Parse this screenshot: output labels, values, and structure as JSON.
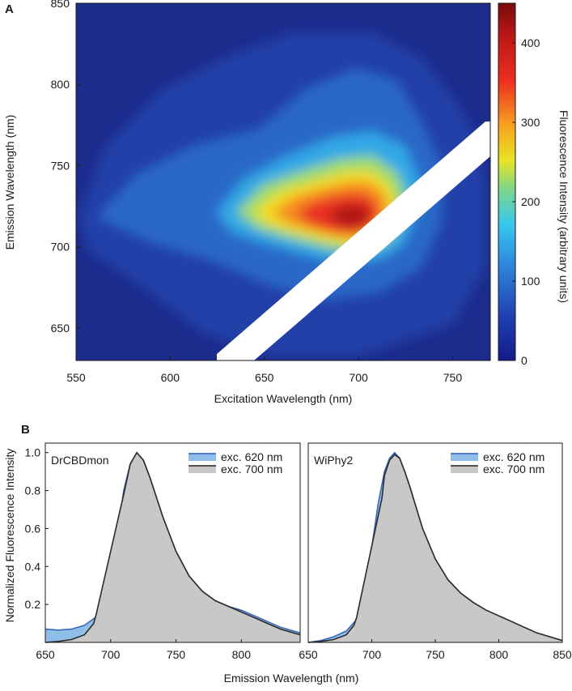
{
  "panelA": {
    "label": "A",
    "xlabel": "Excitation Wavelength (nm)",
    "ylabel": "Emission Wavelength (nm)",
    "colorbar_label": "Fluorescence Intensity (arbitrary units)"
  },
  "panelB": {
    "label": "B",
    "ylabel": "Normalized Fluorescence Intensity",
    "xlabel": "Emission Wavelength (nm)"
  },
  "colors": {
    "blue_fill": "#8fbfe8",
    "blue_line": "#3c68b5",
    "gray_fill": "#c8c8c8",
    "gray_line": "#2b2b2b",
    "heatmap_background": "#1c2c8c"
  },
  "chart_data": [
    {
      "type": "heatmap",
      "title": "",
      "xlabel": "Excitation Wavelength (nm)",
      "ylabel": "Emission Wavelength (nm)",
      "xlim": [
        550,
        770
      ],
      "ylim": [
        630,
        850
      ],
      "xticks": [
        550,
        600,
        650,
        700,
        750
      ],
      "yticks": [
        650,
        700,
        750,
        800,
        850
      ],
      "colorbar": {
        "label": "Fluorescence Intensity (arbitrary units)",
        "range": [
          0,
          450
        ],
        "ticks": [
          0,
          100,
          200,
          300,
          400
        ],
        "colormap": "jet"
      },
      "peak": {
        "excitation": 700,
        "emission": 720,
        "intensity": 445
      },
      "masked_band": {
        "description": "scatter band masked (white)",
        "from": [
          625,
          630
        ],
        "to": [
          770,
          775
        ]
      }
    },
    {
      "type": "area",
      "sample_label": "DrCBDmon",
      "xlabel": "",
      "ylabel": "Normalized Fluorescence Intensity",
      "xlim": [
        650,
        845
      ],
      "ylim": [
        0,
        1.05
      ],
      "xticks": [
        650,
        700,
        750,
        800
      ],
      "yticks": [
        0.2,
        0.4,
        0.6,
        0.8,
        1.0
      ],
      "legend_position": "top-right",
      "series": [
        {
          "name": "exc. 620 nm",
          "x": [
            650,
            660,
            670,
            680,
            690,
            695,
            700,
            705,
            710,
            715,
            720,
            725,
            730,
            740,
            750,
            760,
            770,
            780,
            790,
            800,
            810,
            820,
            830,
            845
          ],
          "values": [
            0.07,
            0.065,
            0.07,
            0.09,
            0.14,
            0.2,
            0.34,
            0.56,
            0.8,
            0.94,
            1.0,
            0.96,
            0.87,
            0.66,
            0.48,
            0.35,
            0.27,
            0.22,
            0.19,
            0.17,
            0.14,
            0.11,
            0.08,
            0.05
          ]
        },
        {
          "name": "exc. 700 nm",
          "x": [
            650,
            660,
            670,
            680,
            687,
            689,
            710,
            715,
            720,
            725,
            730,
            740,
            750,
            760,
            770,
            780,
            790,
            800,
            810,
            820,
            830,
            845
          ],
          "values": [
            0.0,
            0.005,
            0.015,
            0.04,
            0.1,
            0.15,
            0.78,
            0.94,
            1.0,
            0.96,
            0.87,
            0.66,
            0.48,
            0.35,
            0.27,
            0.22,
            0.19,
            0.16,
            0.13,
            0.1,
            0.07,
            0.04
          ]
        }
      ]
    },
    {
      "type": "area",
      "sample_label": "WiPhy2",
      "xlabel": "",
      "ylabel": "",
      "xlim": [
        650,
        850
      ],
      "ylim": [
        0,
        1.05
      ],
      "xticks": [
        650,
        700,
        750,
        800,
        850
      ],
      "legend_position": "top-right",
      "series": [
        {
          "name": "exc. 620 nm",
          "x": [
            650,
            660,
            670,
            680,
            688,
            695,
            700,
            705,
            710,
            714,
            718,
            722,
            726,
            730,
            740,
            750,
            760,
            770,
            780,
            790,
            800,
            810,
            820,
            830,
            840,
            850
          ],
          "values": [
            0.0,
            0.01,
            0.03,
            0.06,
            0.12,
            0.3,
            0.5,
            0.73,
            0.9,
            0.97,
            1.0,
            0.97,
            0.9,
            0.82,
            0.6,
            0.44,
            0.33,
            0.26,
            0.21,
            0.17,
            0.14,
            0.11,
            0.08,
            0.05,
            0.03,
            0.01
          ]
        },
        {
          "name": "exc. 700 nm",
          "x": [
            650,
            660,
            670,
            680,
            686,
            688,
            708,
            710,
            714,
            718,
            722,
            726,
            730,
            740,
            750,
            760,
            770,
            780,
            790,
            800,
            810,
            820,
            830,
            840,
            850
          ],
          "values": [
            0.0,
            0.005,
            0.015,
            0.04,
            0.09,
            0.13,
            0.76,
            0.88,
            0.96,
            0.99,
            0.97,
            0.9,
            0.82,
            0.6,
            0.44,
            0.33,
            0.26,
            0.21,
            0.17,
            0.14,
            0.11,
            0.08,
            0.05,
            0.03,
            0.01
          ]
        }
      ]
    }
  ]
}
